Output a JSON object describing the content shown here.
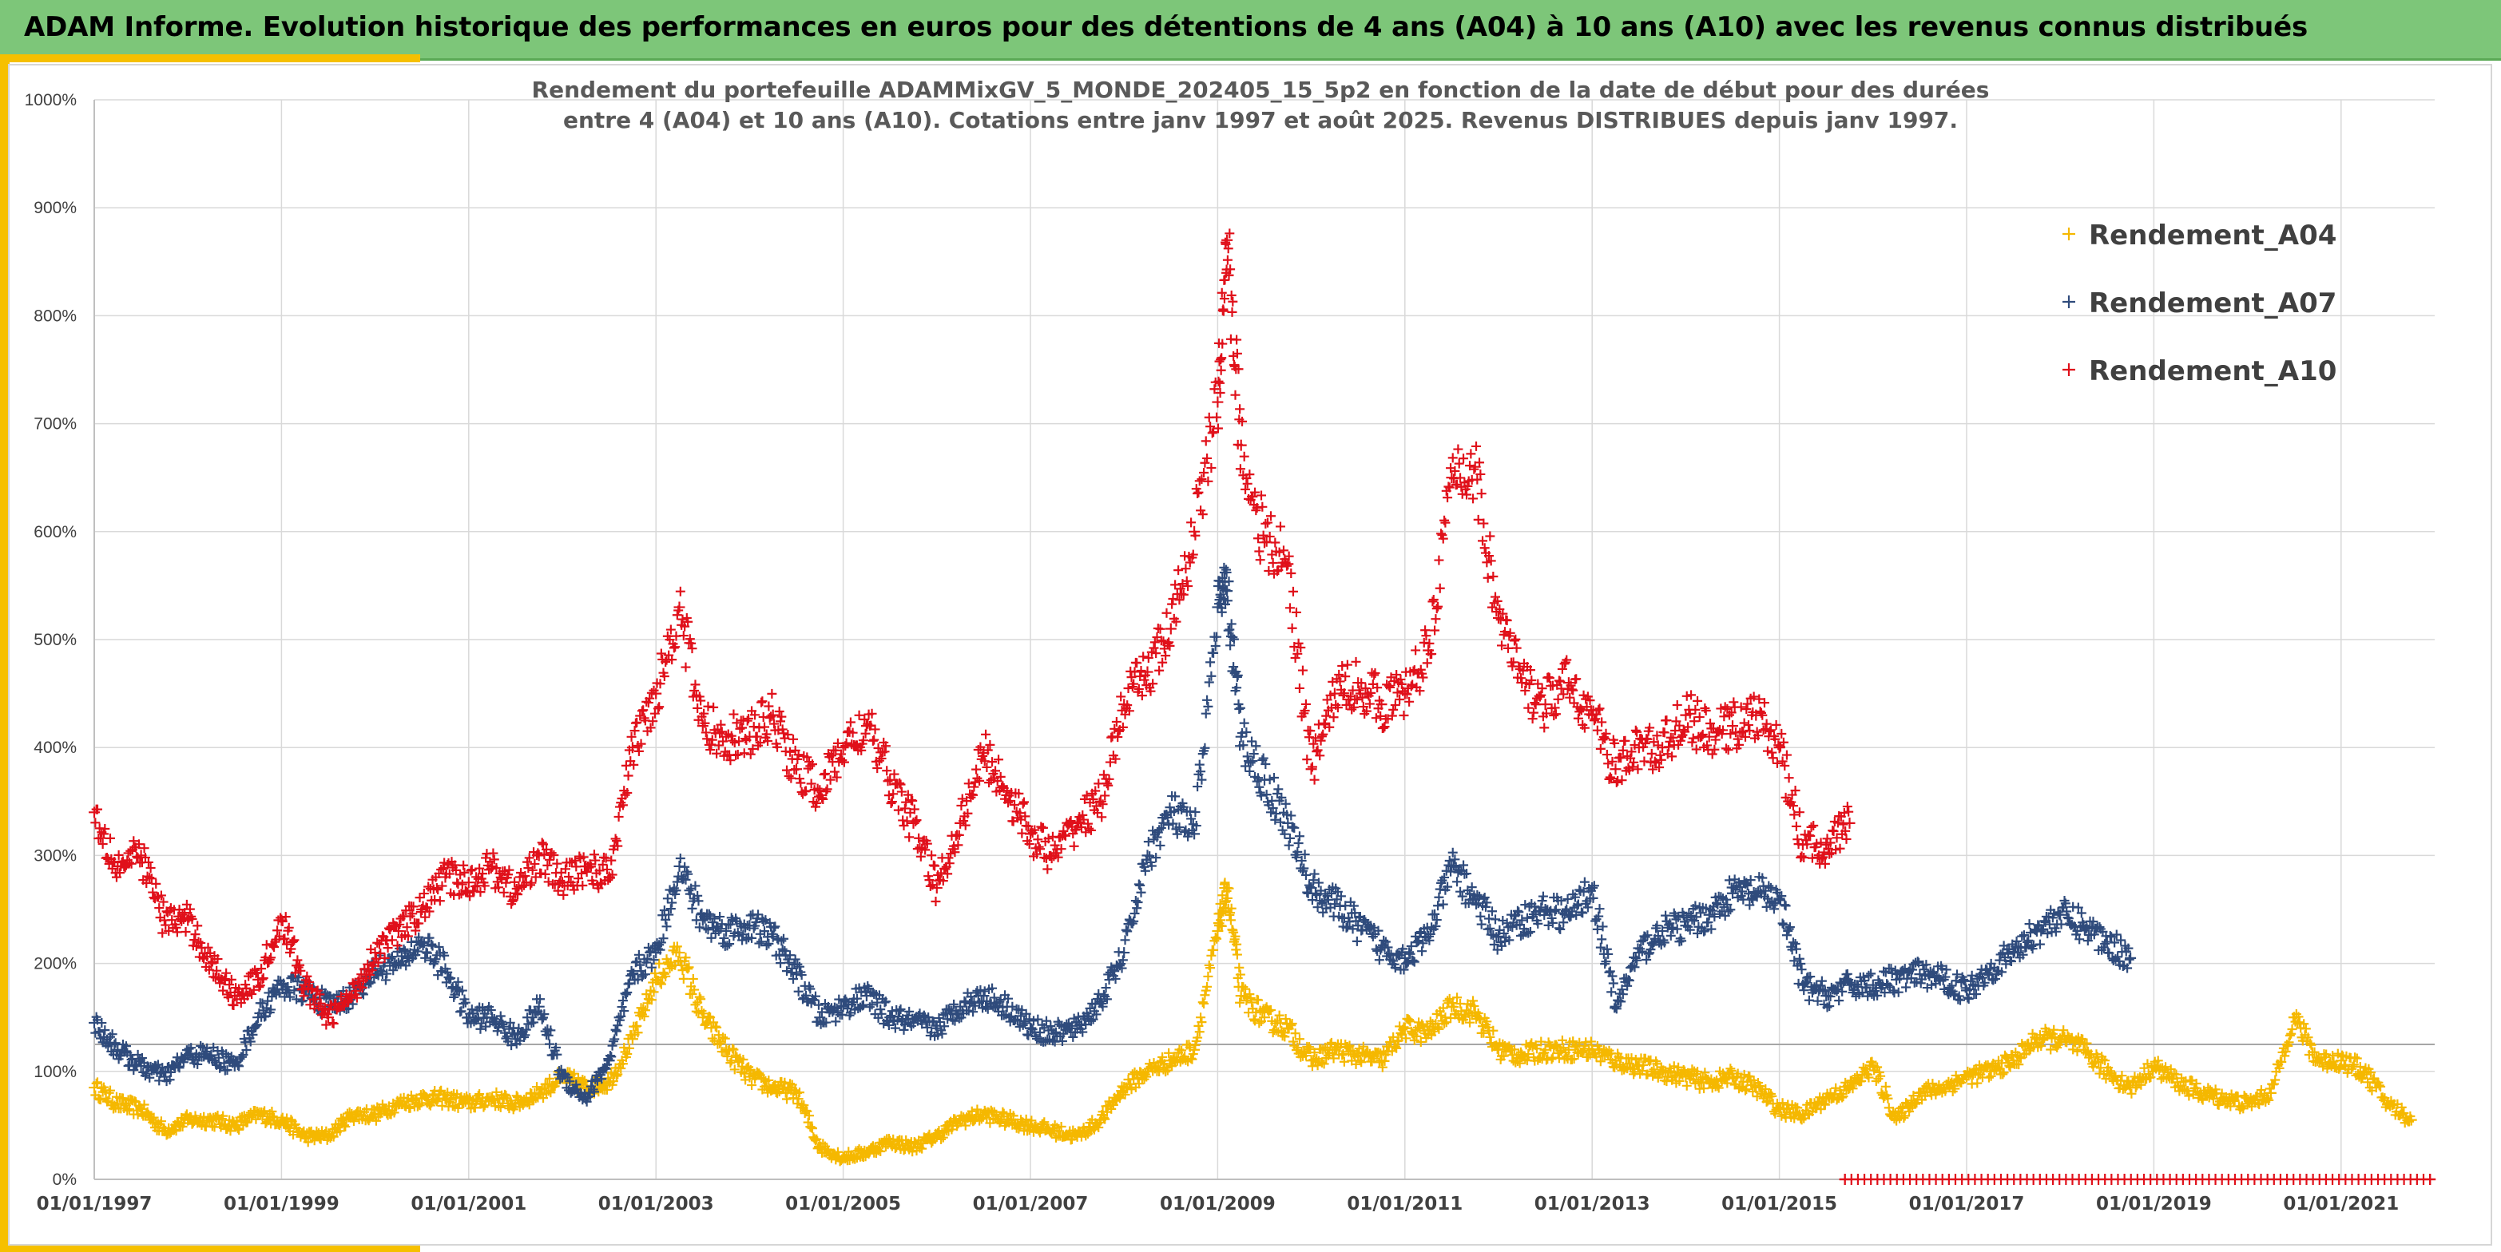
{
  "header": {
    "title": "ADAM Informe. Evolution historique des performances en euros pour des détentions de 4 ans (A04) à 10 ans (A10) avec les revenus connus distribués"
  },
  "chart_data": {
    "type": "scatter",
    "title_lines": [
      "Rendement du portefeuille ADAMMixGV_5_MONDE_202405_15_5p2  en fonction de la date de début pour des durées",
      "entre 4 (A04) et 10 ans (A10). Cotations entre janv 1997 et août 2025. Revenus DISTRIBUES depuis janv 1997."
    ],
    "xlabel": "",
    "ylabel": "",
    "ylim": [
      0,
      1000
    ],
    "yticks": [
      "0%",
      "100%",
      "200%",
      "300%",
      "400%",
      "500%",
      "600%",
      "700%",
      "800%",
      "900%",
      "1000%"
    ],
    "xticks": [
      "01/01/1997",
      "01/01/1999",
      "01/01/2001",
      "01/01/2003",
      "01/01/2005",
      "01/01/2007",
      "01/01/2009",
      "01/01/2011",
      "01/01/2013",
      "01/01/2015",
      "01/01/2017",
      "01/01/2019",
      "01/01/2021"
    ],
    "xlim": [
      1997.0,
      2022.0
    ],
    "grid": true,
    "reference_line": 125,
    "legend_position": "top-right",
    "series": [
      {
        "name": "Rendement_A04",
        "color": "#f5b800",
        "x": [
          1997.0,
          1997.25,
          1997.5,
          1997.75,
          1998.0,
          1998.25,
          1998.5,
          1998.75,
          1999.0,
          1999.25,
          1999.5,
          1999.75,
          2000.0,
          2000.25,
          2000.5,
          2000.75,
          2001.0,
          2001.25,
          2001.5,
          2001.75,
          2002.0,
          2002.25,
          2002.5,
          2002.75,
          2003.0,
          2003.25,
          2003.5,
          2003.75,
          2004.0,
          2004.25,
          2004.5,
          2004.75,
          2005.0,
          2005.25,
          2005.5,
          2005.75,
          2006.0,
          2006.25,
          2006.5,
          2006.75,
          2007.0,
          2007.25,
          2007.5,
          2007.75,
          2008.0,
          2008.25,
          2008.5,
          2008.75,
          2009.0,
          2009.1,
          2009.25,
          2009.5,
          2009.75,
          2010.0,
          2010.25,
          2010.5,
          2010.75,
          2011.0,
          2011.25,
          2011.5,
          2011.75,
          2012.0,
          2012.25,
          2012.5,
          2012.75,
          2013.0,
          2013.25,
          2013.5,
          2013.75,
          2014.0,
          2014.25,
          2014.5,
          2014.75,
          2015.0,
          2015.25,
          2015.5,
          2015.75,
          2016.0,
          2016.25,
          2016.5,
          2016.75,
          2017.0,
          2017.25,
          2017.5,
          2017.75,
          2018.0,
          2018.25,
          2018.5,
          2018.75,
          2019.0,
          2019.25,
          2019.5,
          2019.75,
          2020.0,
          2020.25,
          2020.5,
          2020.75,
          2021.0,
          2021.25,
          2021.5,
          2021.75
        ],
        "y": [
          85,
          70,
          65,
          45,
          55,
          55,
          50,
          60,
          55,
          40,
          40,
          60,
          60,
          70,
          75,
          75,
          70,
          75,
          70,
          80,
          95,
          85,
          90,
          130,
          185,
          210,
          150,
          120,
          95,
          85,
          80,
          30,
          20,
          25,
          35,
          30,
          40,
          55,
          60,
          55,
          50,
          45,
          40,
          55,
          85,
          100,
          110,
          120,
          230,
          270,
          170,
          150,
          140,
          110,
          120,
          115,
          110,
          140,
          135,
          160,
          155,
          120,
          115,
          120,
          120,
          120,
          110,
          105,
          100,
          95,
          90,
          95,
          85,
          65,
          60,
          75,
          85,
          105,
          55,
          80,
          85,
          95,
          100,
          110,
          130,
          130,
          120,
          100,
          85,
          105,
          90,
          80,
          75,
          70,
          80,
          150,
          110,
          110,
          100,
          70,
          55
        ]
      },
      {
        "name": "Rendement_A07",
        "color": "#2f4b7c",
        "x": [
          1997.0,
          1997.25,
          1997.5,
          1997.75,
          1998.0,
          1998.25,
          1998.5,
          1998.75,
          1999.0,
          1999.25,
          1999.5,
          1999.75,
          2000.0,
          2000.25,
          2000.5,
          2000.75,
          2001.0,
          2001.25,
          2001.5,
          2001.75,
          2002.0,
          2002.25,
          2002.5,
          2002.75,
          2003.0,
          2003.25,
          2003.5,
          2003.75,
          2004.0,
          2004.25,
          2004.5,
          2004.75,
          2005.0,
          2005.25,
          2005.5,
          2005.75,
          2006.0,
          2006.25,
          2006.5,
          2006.75,
          2007.0,
          2007.25,
          2007.5,
          2007.75,
          2008.0,
          2008.25,
          2008.5,
          2008.75,
          2009.0,
          2009.1,
          2009.25,
          2009.5,
          2009.75,
          2010.0,
          2010.25,
          2010.5,
          2010.75,
          2011.0,
          2011.25,
          2011.5,
          2011.75,
          2012.0,
          2012.25,
          2012.5,
          2012.75,
          2013.0,
          2013.25,
          2013.5,
          2013.75,
          2014.0,
          2014.25,
          2014.5,
          2014.75,
          2015.0,
          2015.25,
          2015.5,
          2015.75,
          2016.0,
          2016.25,
          2016.5,
          2016.75,
          2017.0,
          2017.25,
          2017.5,
          2017.75,
          2018.0,
          2018.25,
          2018.5,
          2018.75
        ],
        "y": [
          145,
          120,
          105,
          95,
          115,
          115,
          105,
          150,
          180,
          175,
          160,
          170,
          195,
          200,
          220,
          195,
          150,
          150,
          130,
          160,
          95,
          75,
          110,
          190,
          210,
          290,
          240,
          230,
          235,
          225,
          190,
          150,
          160,
          170,
          150,
          145,
          140,
          160,
          170,
          160,
          140,
          135,
          140,
          165,
          210,
          300,
          340,
          320,
          530,
          545,
          410,
          370,
          330,
          270,
          255,
          235,
          215,
          205,
          225,
          290,
          260,
          225,
          240,
          250,
          245,
          270,
          160,
          210,
          230,
          235,
          245,
          265,
          265,
          260,
          180,
          170,
          180,
          180,
          185,
          190,
          185,
          175,
          195,
          210,
          230,
          245,
          235,
          220,
          205
        ]
      },
      {
        "name": "Rendement_A10",
        "color": "#e0101a",
        "x": [
          1997.0,
          1997.25,
          1997.5,
          1997.75,
          1998.0,
          1998.25,
          1998.5,
          1998.75,
          1999.0,
          1999.25,
          1999.5,
          1999.75,
          2000.0,
          2000.25,
          2000.5,
          2000.75,
          2001.0,
          2001.25,
          2001.5,
          2001.75,
          2002.0,
          2002.25,
          2002.5,
          2002.75,
          2003.0,
          2003.25,
          2003.5,
          2003.75,
          2004.0,
          2004.25,
          2004.5,
          2004.75,
          2005.0,
          2005.25,
          2005.5,
          2005.75,
          2006.0,
          2006.25,
          2006.5,
          2006.75,
          2007.0,
          2007.25,
          2007.5,
          2007.75,
          2008.0,
          2008.25,
          2008.5,
          2008.75,
          2009.0,
          2009.1,
          2009.25,
          2009.5,
          2009.75,
          2010.0,
          2010.25,
          2010.5,
          2010.75,
          2011.0,
          2011.25,
          2011.5,
          2011.75,
          2012.0,
          2012.25,
          2012.5,
          2012.75,
          2013.0,
          2013.25,
          2013.5,
          2013.75,
          2014.0,
          2014.25,
          2014.5,
          2014.75,
          2015.0,
          2015.25,
          2015.5,
          2015.75
        ],
        "y": [
          340,
          290,
          300,
          240,
          240,
          200,
          170,
          185,
          240,
          180,
          150,
          170,
          210,
          230,
          250,
          280,
          275,
          290,
          265,
          300,
          275,
          290,
          280,
          400,
          450,
          530,
          420,
          410,
          410,
          430,
          380,
          360,
          400,
          420,
          370,
          330,
          270,
          330,
          395,
          360,
          320,
          300,
          330,
          350,
          440,
          470,
          510,
          600,
          720,
          870,
          680,
          590,
          570,
          380,
          450,
          460,
          440,
          450,
          490,
          650,
          660,
          520,
          460,
          440,
          460,
          430,
          380,
          400,
          400,
          430,
          410,
          420,
          430,
          400,
          310,
          310,
          330
        ]
      },
      {
        "name": "",
        "color": "#e0101a",
        "x": [
          2015.7,
          2021.95
        ],
        "y": [
          0,
          0
        ]
      }
    ]
  }
}
